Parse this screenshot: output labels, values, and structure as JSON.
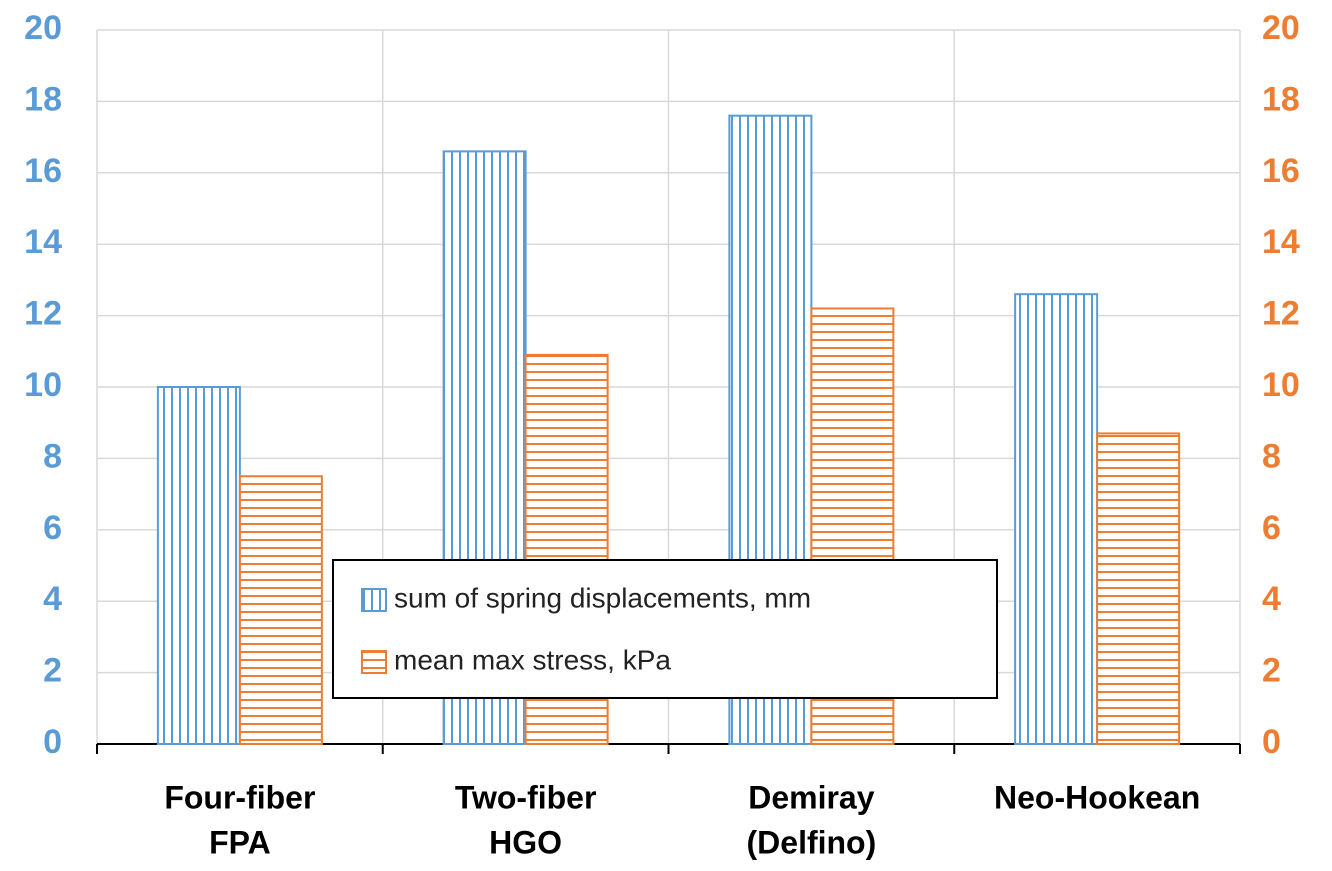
{
  "chart_data": {
    "type": "bar",
    "categories": [
      [
        "Four-fiber",
        "FPA"
      ],
      [
        "Two-fiber",
        "HGO"
      ],
      [
        "Demiray",
        "(Delfino)"
      ],
      [
        "Neo-Hookean"
      ]
    ],
    "series": [
      {
        "name": "sum of spring displacements, mm",
        "color": "#5b9bd5",
        "values": [
          10,
          16.6,
          17.6,
          12.6
        ]
      },
      {
        "name": "mean max stress, kPa",
        "color": "#ed7d31",
        "values": [
          7.5,
          10.9,
          12.2,
          8.7
        ],
        "axis": "y2"
      }
    ],
    "ylim": [
      0,
      20
    ],
    "yticks": [
      0,
      2,
      4,
      6,
      8,
      10,
      12,
      14,
      16,
      18,
      20
    ],
    "y2lim": [
      0,
      20
    ],
    "y2ticks": [
      0,
      2,
      4,
      6,
      8,
      10,
      12,
      14,
      16,
      18,
      20
    ],
    "grid": true
  }
}
